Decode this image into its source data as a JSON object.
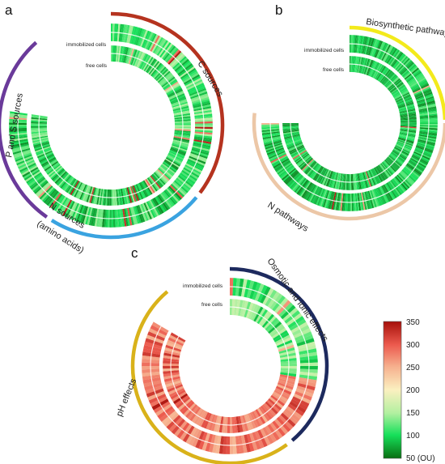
{
  "panels": [
    {
      "letter": "a",
      "ring_labels": [
        "immobilized cells",
        "free cells"
      ],
      "groups": [
        {
          "name": "C sources",
          "color": "#b5331f"
        },
        {
          "name": "N sources",
          "name2": "(amino acids)",
          "color": "#3aa3e0"
        },
        {
          "name": "P and S sources",
          "color": "#6a3a9a"
        }
      ]
    },
    {
      "letter": "b",
      "ring_labels": [
        "immobilized cells",
        "free cells"
      ],
      "groups": [
        {
          "name": "Biosynthetic pathways",
          "color": "#f3ea1c"
        },
        {
          "name": "N pathways",
          "color": "#ecc7a7"
        }
      ]
    },
    {
      "letter": "c",
      "ring_labels": [
        "immobilized cells",
        "free cells"
      ],
      "groups": [
        {
          "name": "Osmotic and ionic effects",
          "color": "#1d2a5e"
        },
        {
          "name": "pH effects",
          "color": "#d9b21a"
        }
      ]
    }
  ],
  "colorbar": {
    "ticks": [
      "350",
      "300",
      "250",
      "200",
      "150",
      "100",
      "50 (OU)"
    ],
    "min": 50,
    "max": 350,
    "colors": [
      "#0a6e12",
      "#16e05a",
      "#b2f0a0",
      "#fbf0c0",
      "#f6b08e",
      "#ec5a4e",
      "#a6100a"
    ]
  },
  "chart_data": [
    {
      "type": "heatmap",
      "panel": "a",
      "rows": [
        "immobilized cells",
        "free cells"
      ],
      "categories": [
        "C sources",
        "N sources (amino acids)",
        "P and S sources"
      ],
      "value_range": [
        50,
        350
      ],
      "unit": "OU"
    },
    {
      "type": "heatmap",
      "panel": "b",
      "rows": [
        "immobilized cells",
        "free cells"
      ],
      "categories": [
        "Biosynthetic pathways",
        "N pathways"
      ],
      "value_range": [
        50,
        350
      ],
      "unit": "OU"
    },
    {
      "type": "heatmap",
      "panel": "c",
      "rows": [
        "immobilized cells",
        "free cells"
      ],
      "categories": [
        "Osmotic and ionic effects",
        "pH effects"
      ],
      "value_range": [
        50,
        350
      ],
      "unit": "OU"
    }
  ]
}
